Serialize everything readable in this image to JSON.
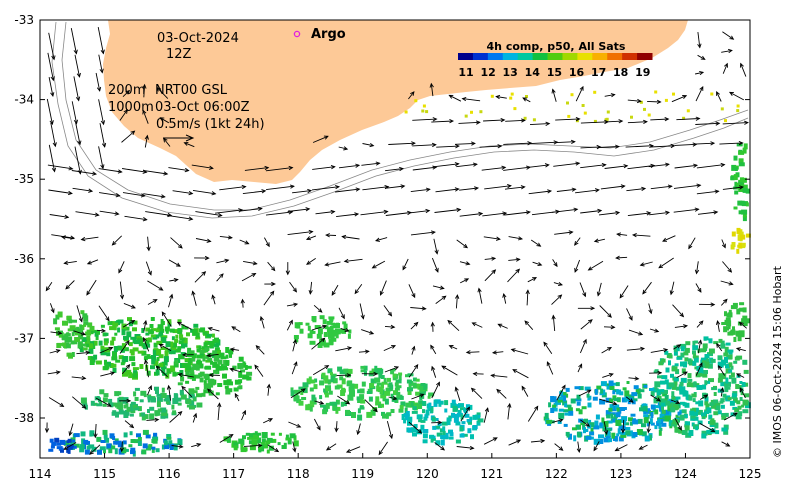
{
  "map": {
    "date": "03-Oct-2024",
    "time": "12Z",
    "depth_line_1": "200m",
    "depth_line_2": "1000m",
    "product": "NRT00 GSL",
    "product_time": "03-Oct 06:00Z",
    "scale_label": "0.5m/s (1kt 24h)",
    "argo_label": "Argo",
    "credit": "© IMOS 06-Oct-2024 15:06 Hobart",
    "land_color": "#fdc997",
    "argo_color": "#e020e0",
    "lon_range": [
      114,
      125
    ],
    "lat_range": [
      -38.5,
      -33
    ]
  },
  "axes": {
    "x_ticks": [
      "114",
      "115",
      "116",
      "117",
      "118",
      "119",
      "120",
      "121",
      "122",
      "123",
      "124",
      "125"
    ],
    "y_ticks": [
      "-33",
      "-34",
      "-35",
      "-36",
      "-37",
      "-38"
    ]
  },
  "colorbar": {
    "title": "4h comp, p50, All Sats",
    "ticks": [
      "11",
      "12",
      "13",
      "14",
      "15",
      "16",
      "17",
      "18",
      "19"
    ],
    "colors": [
      "#00008c",
      "#0030d0",
      "#0078f0",
      "#00b4e0",
      "#00c8a0",
      "#10c040",
      "#50cc10",
      "#a0d800",
      "#e8e000",
      "#f8b000",
      "#f07000",
      "#d03000",
      "#900000"
    ]
  }
}
